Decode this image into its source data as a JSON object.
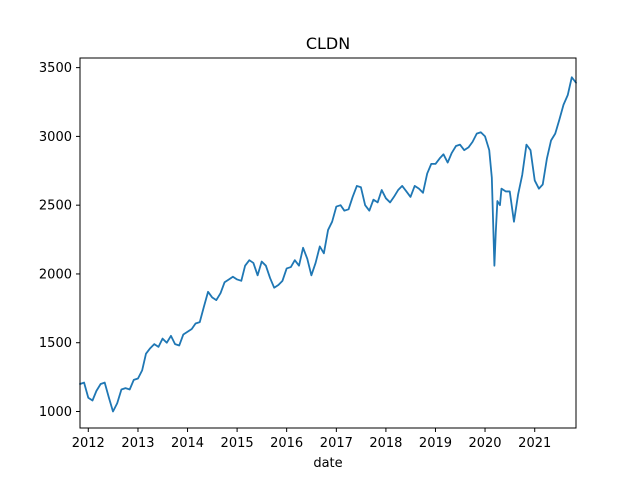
{
  "chart_data": {
    "type": "line",
    "title": "CLDN",
    "xlabel": "date",
    "ylabel": "",
    "xlim": [
      "2011-11-01",
      "2021-11-01"
    ],
    "ylim": [
      880,
      3570
    ],
    "x_ticks": [
      "2012",
      "2013",
      "2014",
      "2015",
      "2016",
      "2017",
      "2018",
      "2019",
      "2020",
      "2021"
    ],
    "y_ticks": [
      1000,
      1500,
      2000,
      2500,
      3000,
      3500
    ],
    "grid": false,
    "color": "#1f77b4",
    "series": [
      {
        "x": [
          "2011-11-01",
          "2011-12-01",
          "2012-01-01",
          "2012-02-01",
          "2012-03-01",
          "2012-04-01",
          "2012-05-01",
          "2012-06-01",
          "2012-07-01",
          "2012-08-01",
          "2012-09-01",
          "2012-10-01",
          "2012-11-01",
          "2012-12-01",
          "2013-01-01",
          "2013-02-01",
          "2013-03-01",
          "2013-04-01",
          "2013-05-01",
          "2013-06-01",
          "2013-07-01",
          "2013-08-01",
          "2013-09-01",
          "2013-10-01",
          "2013-11-01",
          "2013-12-01",
          "2014-01-01",
          "2014-02-01",
          "2014-03-01",
          "2014-04-01",
          "2014-05-01",
          "2014-06-01",
          "2014-07-01",
          "2014-08-01",
          "2014-09-01",
          "2014-10-01",
          "2014-11-01",
          "2014-12-01",
          "2015-01-01",
          "2015-02-01",
          "2015-03-01",
          "2015-04-01",
          "2015-05-01",
          "2015-06-01",
          "2015-07-01",
          "2015-08-01",
          "2015-09-01",
          "2015-10-01",
          "2015-11-01",
          "2015-12-01",
          "2016-01-01",
          "2016-02-01",
          "2016-03-01",
          "2016-04-01",
          "2016-05-01",
          "2016-06-01",
          "2016-07-01",
          "2016-08-01",
          "2016-09-01",
          "2016-10-01",
          "2016-11-01",
          "2016-12-01",
          "2017-01-01",
          "2017-02-01",
          "2017-03-01",
          "2017-04-01",
          "2017-05-01",
          "2017-06-01",
          "2017-07-01",
          "2017-08-01",
          "2017-09-01",
          "2017-10-01",
          "2017-11-01",
          "2017-12-01",
          "2018-01-01",
          "2018-02-01",
          "2018-03-01",
          "2018-04-01",
          "2018-05-01",
          "2018-06-01",
          "2018-07-01",
          "2018-08-01",
          "2018-09-01",
          "2018-10-01",
          "2018-11-01",
          "2018-12-01",
          "2019-01-01",
          "2019-02-01",
          "2019-03-01",
          "2019-04-01",
          "2019-05-01",
          "2019-06-01",
          "2019-07-01",
          "2019-08-01",
          "2019-09-01",
          "2019-10-01",
          "2019-11-01",
          "2019-12-01",
          "2020-01-01",
          "2020-02-01",
          "2020-02-20",
          "2020-03-10",
          "2020-03-20",
          "2020-04-01",
          "2020-04-20",
          "2020-05-01",
          "2020-06-01",
          "2020-07-01",
          "2020-08-01",
          "2020-09-01",
          "2020-10-01",
          "2020-11-01",
          "2020-12-01",
          "2021-01-01",
          "2021-02-01",
          "2021-03-01",
          "2021-04-01",
          "2021-05-01",
          "2021-06-01",
          "2021-07-01",
          "2021-08-01",
          "2021-09-01",
          "2021-10-01",
          "2021-11-01"
        ],
        "y": [
          1200,
          1210,
          1100,
          1080,
          1150,
          1200,
          1210,
          1100,
          1000,
          1060,
          1160,
          1170,
          1160,
          1230,
          1240,
          1300,
          1420,
          1460,
          1490,
          1470,
          1530,
          1500,
          1550,
          1490,
          1480,
          1560,
          1580,
          1600,
          1640,
          1650,
          1760,
          1870,
          1830,
          1810,
          1860,
          1940,
          1960,
          1980,
          1960,
          1950,
          2060,
          2100,
          2080,
          1990,
          2090,
          2060,
          1970,
          1900,
          1920,
          1950,
          2040,
          2050,
          2100,
          2060,
          2190,
          2110,
          1990,
          2080,
          2200,
          2150,
          2320,
          2380,
          2490,
          2500,
          2460,
          2470,
          2560,
          2640,
          2630,
          2500,
          2460,
          2540,
          2520,
          2610,
          2550,
          2520,
          2560,
          2610,
          2640,
          2600,
          2560,
          2640,
          2620,
          2590,
          2730,
          2800,
          2800,
          2840,
          2870,
          2810,
          2880,
          2930,
          2940,
          2900,
          2920,
          2960,
          3020,
          3030,
          3000,
          2900,
          2700,
          2060,
          2300,
          2530,
          2500,
          2620,
          2600,
          2600,
          2380,
          2580,
          2720,
          2940,
          2900,
          2680,
          2620,
          2650,
          2840,
          2970,
          3020,
          3120,
          3230,
          3300,
          3430,
          3390
        ]
      }
    ]
  }
}
